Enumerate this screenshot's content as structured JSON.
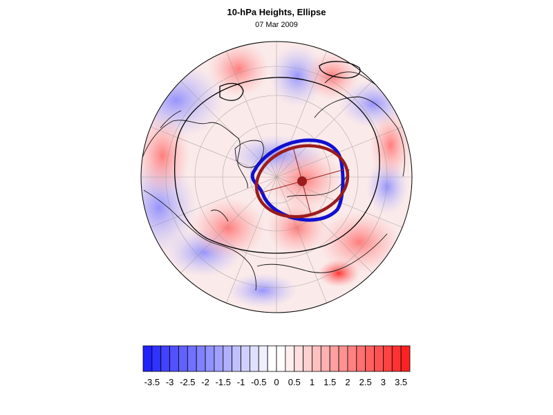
{
  "title": "10-hPa Heights, Ellipse",
  "date": "07 Mar 2009",
  "projection": "north-polar-stereographic",
  "colorbar": {
    "colors": {
      "negative_max": "#1414ff",
      "neutral": "#ffffff",
      "positive_max": "#ff1414"
    },
    "ticks": [
      "-3.5",
      "-3",
      "-2.5",
      "-2",
      "-1.5",
      "-1",
      "-0.5",
      "0",
      "0.5",
      "1",
      "1.5",
      "2",
      "2.5",
      "3",
      "3.5"
    ]
  },
  "overlays": {
    "ellipse_color": "#9b1c1c",
    "vortex_contour_color": "#1010d0",
    "height_contour_color": "#000000"
  }
}
